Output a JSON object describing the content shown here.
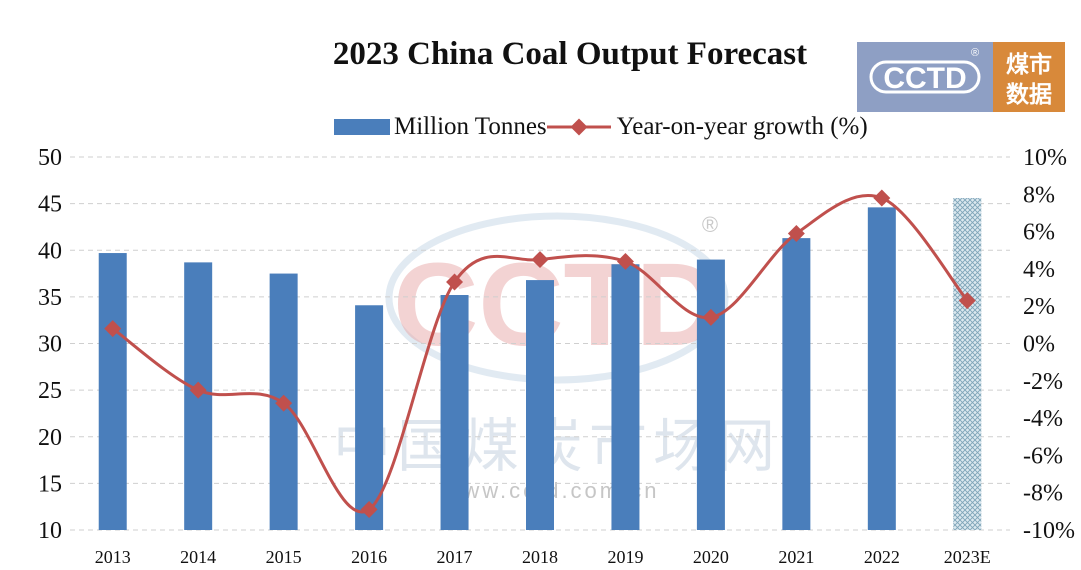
{
  "chart_data": {
    "type": "bar",
    "title": "2023 China Coal Output Forecast",
    "categories": [
      "2013",
      "2014",
      "2015",
      "2016",
      "2017",
      "2018",
      "2019",
      "2020",
      "2021",
      "2022",
      "2023E"
    ],
    "series": [
      {
        "name": "Million Tonnes",
        "type": "bar",
        "axis": "left",
        "values": [
          39.7,
          38.7,
          37.5,
          34.1,
          35.2,
          36.8,
          38.5,
          39.0,
          41.3,
          44.6,
          45.6
        ],
        "colors": {
          "bar": "#4a7ebb",
          "forecast_bar": "#b9d2df"
        }
      },
      {
        "name": "Year-on-year growth (%)",
        "type": "line",
        "axis": "right",
        "values": [
          0.8,
          -2.5,
          -3.2,
          -8.9,
          3.3,
          4.5,
          4.4,
          1.4,
          5.9,
          7.8,
          2.3
        ],
        "colors": {
          "line": "#c0504d"
        }
      }
    ],
    "ylim_left": [
      10,
      50
    ],
    "yticks_left": [
      "10",
      "15",
      "20",
      "25",
      "30",
      "35",
      "40",
      "45",
      "50"
    ],
    "ylim_right": [
      -10,
      10
    ],
    "yticks_right": [
      "-10%",
      "-8%",
      "-6%",
      "-4%",
      "-2%",
      "0%",
      "2%",
      "4%",
      "6%",
      "8%",
      "10%"
    ],
    "grid": true,
    "legend_position": "top-center"
  },
  "logo": {
    "text": "CCTD",
    "chinese_line1": "煤市",
    "chinese_line2": "数据",
    "registered_mark": "®"
  },
  "watermark": {
    "mark": "CCTD",
    "registered_mark": "®",
    "chinese": "中国煤炭市场网",
    "url": "www.cctd.com.cn"
  }
}
